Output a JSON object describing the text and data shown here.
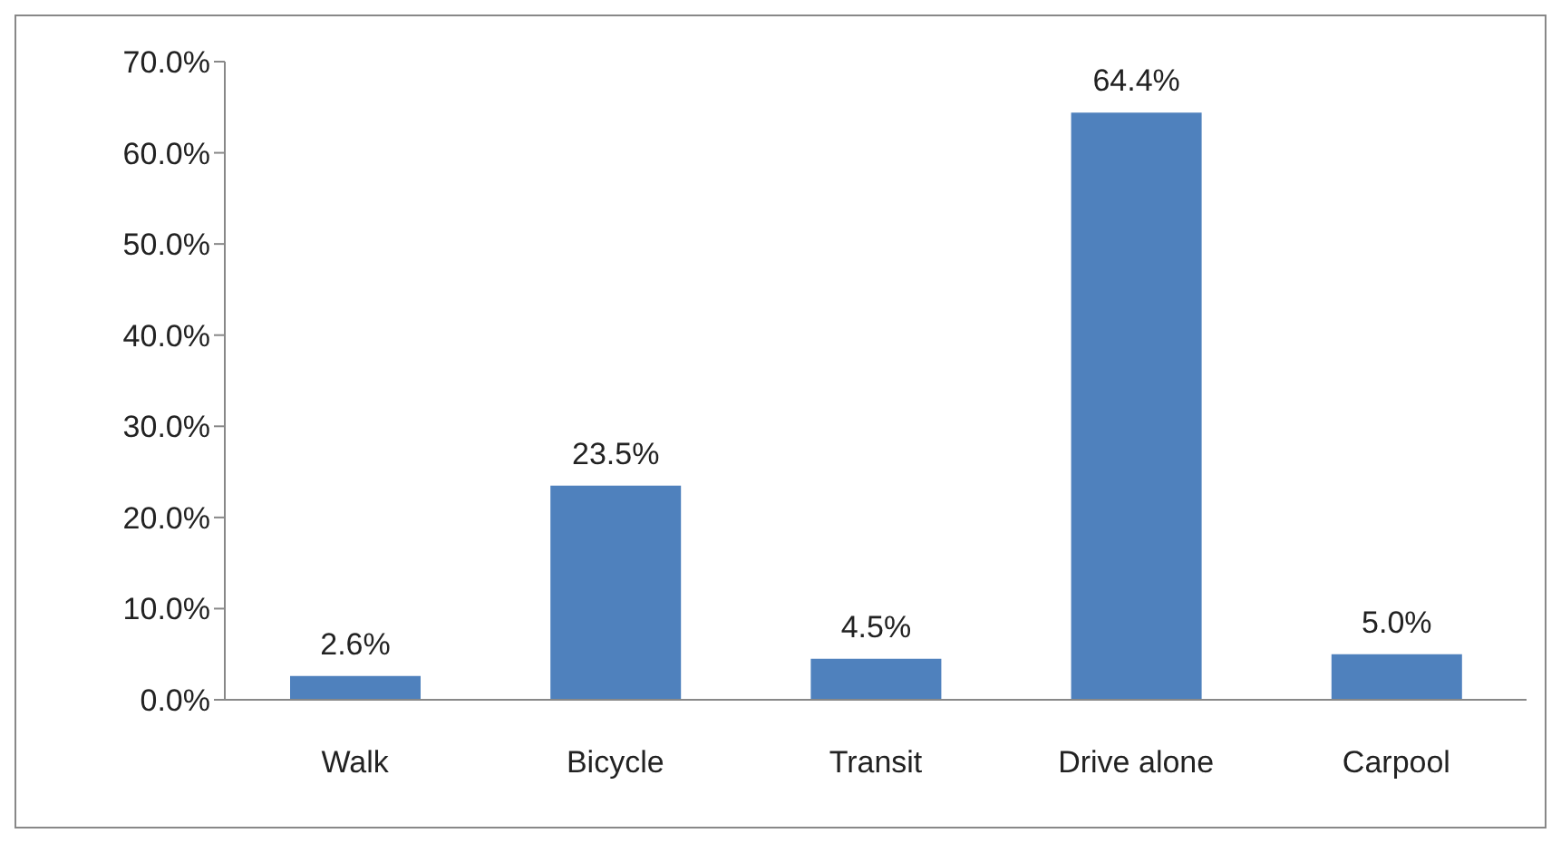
{
  "chart_data": {
    "type": "bar",
    "categories": [
      "Walk",
      "Bicycle",
      "Transit",
      "Drive alone",
      "Carpool"
    ],
    "values": [
      2.6,
      23.5,
      4.5,
      64.4,
      5.0
    ],
    "color": "#4f81bd",
    "value_labels": [
      "2.6%",
      "23.5%",
      "4.5%",
      "64.4%",
      "5.0%"
    ],
    "ylim": [
      0,
      70
    ],
    "yticks": [
      {
        "value": 0,
        "label": "0.0%"
      },
      {
        "value": 10,
        "label": "10.0%"
      },
      {
        "value": 20,
        "label": "20.0%"
      },
      {
        "value": 30,
        "label": "30.0%"
      },
      {
        "value": 40,
        "label": "40.0%"
      },
      {
        "value": 50,
        "label": "50.0%"
      },
      {
        "value": 60,
        "label": "60.0%"
      },
      {
        "value": 70,
        "label": "70.0%"
      }
    ],
    "grid": false,
    "legend": false
  }
}
